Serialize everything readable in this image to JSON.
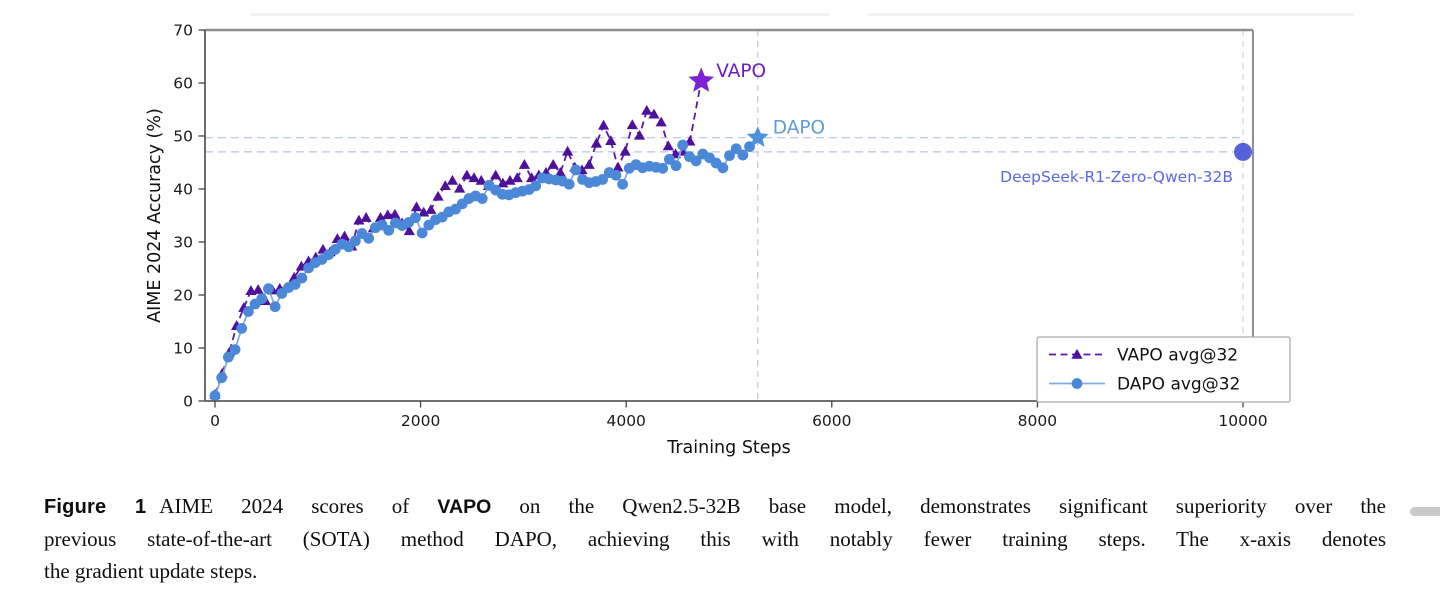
{
  "chart_data": {
    "type": "line",
    "title": "",
    "xlabel": "Training Steps",
    "ylabel": "AIME 2024 Accuracy (%)",
    "xlim": [
      0,
      10000
    ],
    "ylim": [
      0,
      70
    ],
    "x_ticks": [
      0,
      2000,
      4000,
      6000,
      8000,
      10000
    ],
    "y_ticks": [
      0,
      10,
      20,
      30,
      40,
      50,
      60,
      70
    ],
    "grid": false,
    "legend_position": "lower right",
    "series": [
      {
        "name": "VAPO avg@32",
        "line_style": "dashed",
        "marker": "triangle",
        "color": "#4e119b",
        "line_color": "#5a18ab",
        "end": {
          "x": 4730,
          "y": 60.4,
          "marker": "star",
          "label": "VAPO",
          "star_color": "#7b22d4",
          "label_color": "#6b1cc6"
        },
        "points": [
          [
            0,
            1.2
          ],
          [
            70,
            5.2
          ],
          [
            140,
            9.2
          ],
          [
            210,
            14.2
          ],
          [
            280,
            17.6
          ],
          [
            350,
            20.8
          ],
          [
            420,
            21.0
          ],
          [
            490,
            18.9
          ],
          [
            560,
            20.9
          ],
          [
            630,
            21.2
          ],
          [
            700,
            21.4
          ],
          [
            770,
            23.3
          ],
          [
            840,
            25.4
          ],
          [
            910,
            26.4
          ],
          [
            980,
            27.1
          ],
          [
            1050,
            28.6
          ],
          [
            1120,
            28.1
          ],
          [
            1190,
            30.6
          ],
          [
            1260,
            31.1
          ],
          [
            1330,
            29.2
          ],
          [
            1400,
            34.1
          ],
          [
            1470,
            34.6
          ],
          [
            1540,
            32.6
          ],
          [
            1610,
            34.6
          ],
          [
            1680,
            35.1
          ],
          [
            1750,
            35.2
          ],
          [
            1820,
            33.6
          ],
          [
            1890,
            32.1
          ],
          [
            1960,
            36.6
          ],
          [
            2030,
            35.6
          ],
          [
            2100,
            36.1
          ],
          [
            2170,
            38.6
          ],
          [
            2240,
            40.6
          ],
          [
            2310,
            41.6
          ],
          [
            2380,
            40.1
          ],
          [
            2450,
            42.6
          ],
          [
            2520,
            42.1
          ],
          [
            2590,
            41.6
          ],
          [
            2660,
            40.6
          ],
          [
            2730,
            42.6
          ],
          [
            2800,
            41.1
          ],
          [
            2870,
            41.6
          ],
          [
            2940,
            42.1
          ],
          [
            3010,
            44.6
          ],
          [
            3080,
            42.1
          ],
          [
            3150,
            42.6
          ],
          [
            3220,
            43.1
          ],
          [
            3290,
            44.6
          ],
          [
            3360,
            43.1
          ],
          [
            3430,
            47.1
          ],
          [
            3500,
            44.1
          ],
          [
            3570,
            43.6
          ],
          [
            3640,
            44.6
          ],
          [
            3710,
            48.6
          ],
          [
            3780,
            52.0
          ],
          [
            3850,
            49.1
          ],
          [
            3920,
            44.1
          ],
          [
            3990,
            47.1
          ],
          [
            4060,
            52.1
          ],
          [
            4130,
            50.1
          ],
          [
            4200,
            54.8
          ],
          [
            4270,
            54.1
          ],
          [
            4340,
            52.6
          ],
          [
            4410,
            48.1
          ],
          [
            4480,
            46.6
          ],
          [
            4550,
            47.1
          ],
          [
            4620,
            49.0
          ],
          [
            4730,
            60.4
          ]
        ]
      },
      {
        "name": "DAPO avg@32",
        "line_style": "solid",
        "marker": "circle",
        "color": "#4c88d8",
        "line_color": "#82abdf",
        "end": {
          "x": 5280,
          "y": 49.7,
          "marker": "star",
          "label": "DAPO",
          "star_color": "#4e90da",
          "label_color": "#5d9cd8"
        },
        "points": [
          [
            0,
            1.0
          ],
          [
            65,
            4.4
          ],
          [
            130,
            8.3
          ],
          [
            195,
            9.7
          ],
          [
            260,
            13.7
          ],
          [
            325,
            16.9
          ],
          [
            390,
            18.3
          ],
          [
            455,
            19.3
          ],
          [
            520,
            21.2
          ],
          [
            585,
            17.8
          ],
          [
            650,
            20.3
          ],
          [
            715,
            21.4
          ],
          [
            780,
            22.0
          ],
          [
            845,
            23.2
          ],
          [
            910,
            25.1
          ],
          [
            975,
            26.1
          ],
          [
            1040,
            26.7
          ],
          [
            1105,
            27.6
          ],
          [
            1170,
            28.6
          ],
          [
            1235,
            29.6
          ],
          [
            1300,
            29.1
          ],
          [
            1365,
            30.2
          ],
          [
            1430,
            31.6
          ],
          [
            1495,
            30.7
          ],
          [
            1560,
            32.7
          ],
          [
            1625,
            33.2
          ],
          [
            1690,
            32.2
          ],
          [
            1755,
            33.6
          ],
          [
            1820,
            33.1
          ],
          [
            1885,
            33.7
          ],
          [
            1950,
            34.6
          ],
          [
            2015,
            31.7
          ],
          [
            2080,
            33.2
          ],
          [
            2145,
            34.2
          ],
          [
            2210,
            34.7
          ],
          [
            2275,
            35.7
          ],
          [
            2340,
            36.2
          ],
          [
            2405,
            37.2
          ],
          [
            2470,
            38.2
          ],
          [
            2535,
            38.7
          ],
          [
            2600,
            38.2
          ],
          [
            2665,
            40.7
          ],
          [
            2730,
            39.8
          ],
          [
            2795,
            39.0
          ],
          [
            2860,
            38.9
          ],
          [
            2925,
            39.3
          ],
          [
            2990,
            39.6
          ],
          [
            3055,
            39.9
          ],
          [
            3120,
            40.6
          ],
          [
            3185,
            42.1
          ],
          [
            3250,
            41.9
          ],
          [
            3315,
            41.7
          ],
          [
            3380,
            41.5
          ],
          [
            3445,
            40.9
          ],
          [
            3510,
            43.6
          ],
          [
            3575,
            41.8
          ],
          [
            3640,
            41.2
          ],
          [
            3705,
            41.4
          ],
          [
            3770,
            41.8
          ],
          [
            3835,
            43.1
          ],
          [
            3900,
            42.6
          ],
          [
            3965,
            40.9
          ],
          [
            4030,
            43.9
          ],
          [
            4095,
            44.6
          ],
          [
            4160,
            44.0
          ],
          [
            4225,
            44.3
          ],
          [
            4290,
            44.1
          ],
          [
            4355,
            43.9
          ],
          [
            4420,
            45.6
          ],
          [
            4485,
            44.4
          ],
          [
            4550,
            48.3
          ],
          [
            4615,
            46.1
          ],
          [
            4680,
            45.3
          ],
          [
            4745,
            46.6
          ],
          [
            4810,
            45.9
          ],
          [
            4875,
            44.9
          ],
          [
            4940,
            44.0
          ],
          [
            5005,
            46.3
          ],
          [
            5070,
            47.6
          ],
          [
            5135,
            46.4
          ],
          [
            5200,
            48.0
          ],
          [
            5280,
            49.7
          ]
        ]
      }
    ],
    "reference_point": {
      "x": 10000,
      "y": 47,
      "label": "DeepSeek-R1-Zero-Qwen-32B",
      "dot_color": "#5561d6",
      "label_color": "#5b69de"
    },
    "reference_lines": {
      "horizontal": [
        {
          "y": 49.7,
          "color": "#bcc7ec"
        },
        {
          "y": 47.0,
          "color": "#b9c4ea"
        }
      ],
      "vertical": [
        {
          "x": 5280,
          "color": "#c6cdd9"
        },
        {
          "x": 10000,
          "color": "#d3d5da"
        }
      ]
    },
    "legend": {
      "entries": [
        "VAPO avg@32",
        "DAPO avg@32"
      ],
      "text_color": "#111111",
      "border_color": "#ababab"
    },
    "tick_color": "#1a1a1a",
    "axis_label_color": "#111111",
    "spine_color": "#5c5c5c"
  },
  "caption": {
    "label": "Figure 1",
    "line1_pre": "AIME 2024 scores of ",
    "bold_term": "VAPO",
    "line1_post": " on the Qwen2.5-32B base model, demonstrates significant superiority over the",
    "line2": "previous state-of-the-art (SOTA) method DAPO, achieving this with notably fewer training steps. The x-axis denotes",
    "line3": "the gradient update steps."
  }
}
